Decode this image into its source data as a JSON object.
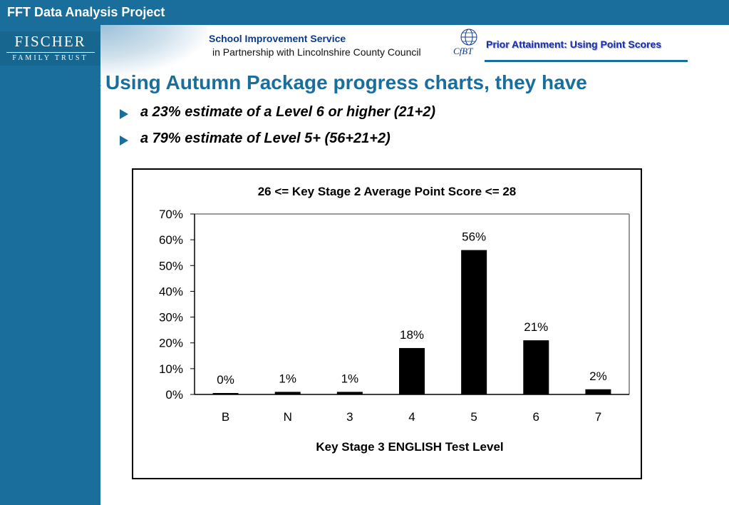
{
  "header": {
    "title": "FFT Data Analysis Project"
  },
  "logo": {
    "main": "FISCHER",
    "sub": "FAMILY TRUST"
  },
  "partner": {
    "line1": "School Improvement Service",
    "line2": "in Partnership with Lincolnshire County Council",
    "cfbt": "CfBT"
  },
  "banner": {
    "title": "Prior Attainment: Using Point Scores"
  },
  "content": {
    "heading": "Using Autumn Package progress charts, they have",
    "bullets": [
      "a 23% estimate of a Level 6 or higher (21+2)",
      "a 79% estimate of Level 5+ (56+21+2)"
    ]
  },
  "colors": {
    "brand": "#1a6e9c",
    "banner_text": "#1b2fa8",
    "partner_text": "#0c3a8c",
    "bars": "#000000"
  },
  "chart_data": {
    "type": "bar",
    "title": "26 <= Key Stage 2 Average Point Score <= 28",
    "xlabel": "Key Stage 3 ENGLISH Test Level",
    "ylabel": "",
    "categories": [
      "B",
      "N",
      "3",
      "4",
      "5",
      "6",
      "7"
    ],
    "values": [
      0,
      1,
      1,
      18,
      56,
      21,
      2
    ],
    "data_labels": [
      "0%",
      "1%",
      "1%",
      "18%",
      "56%",
      "21%",
      "2%"
    ],
    "ylim": [
      0,
      70
    ],
    "yticks": [
      "0%",
      "10%",
      "20%",
      "30%",
      "40%",
      "50%",
      "60%",
      "70%"
    ],
    "grid": false,
    "legend": "none"
  }
}
